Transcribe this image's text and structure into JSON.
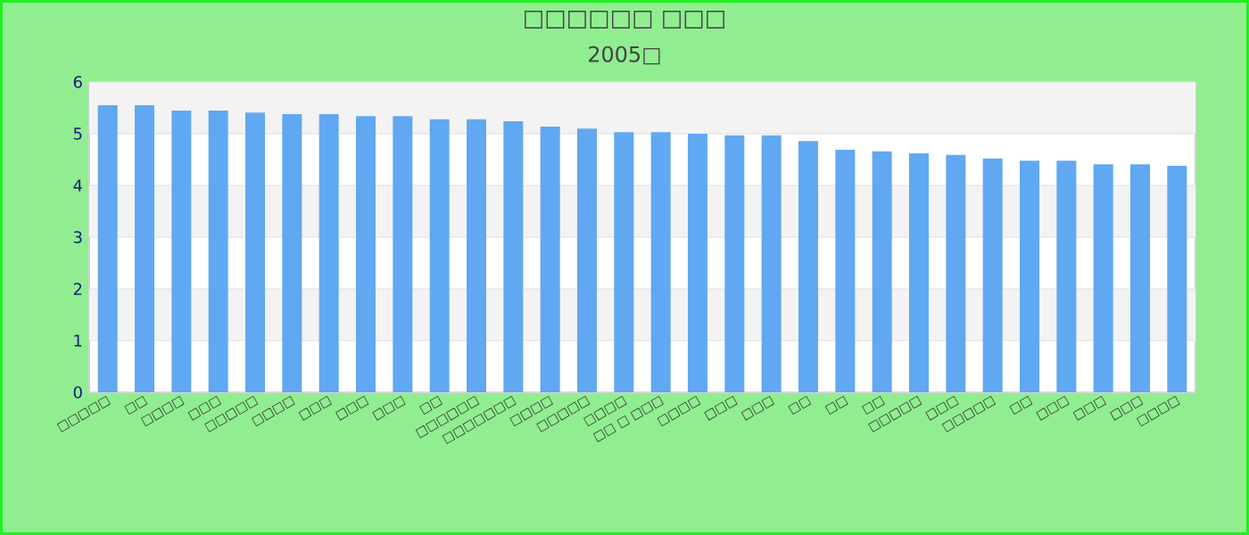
{
  "chart_data": {
    "type": "bar",
    "title": "□□□□□□ □□□",
    "subtitle": "2005□",
    "categories": [
      "□□□□□",
      "□□",
      "□□□□",
      "□□□",
      "□□□□□",
      "□□□□",
      "□□□",
      "□□□",
      "□□□",
      "□□",
      "□□□□□□",
      "□□□□□□□",
      "□□□□",
      "□□□□□",
      "□□□□",
      "□□ □ □□□",
      "□□□□",
      "□□□",
      "□□□",
      "□□",
      "□□",
      "□□",
      "□□□□□",
      "□□□",
      "□□□□□",
      "□□",
      "□□□",
      "□□□",
      "□□□",
      "□□□□"
    ],
    "values": [
      5.55,
      5.55,
      5.45,
      5.45,
      5.41,
      5.38,
      5.38,
      5.34,
      5.34,
      5.28,
      5.28,
      5.24,
      5.14,
      5.1,
      5.03,
      5.03,
      5.0,
      4.97,
      4.97,
      4.86,
      4.69,
      4.66,
      4.62,
      4.59,
      4.52,
      4.48,
      4.48,
      4.41,
      4.41,
      4.38
    ],
    "color": "#60a8f2",
    "ylim": [
      0,
      6
    ],
    "yticks": [
      0,
      1,
      2,
      3,
      4,
      5,
      6
    ],
    "grid": "y"
  }
}
